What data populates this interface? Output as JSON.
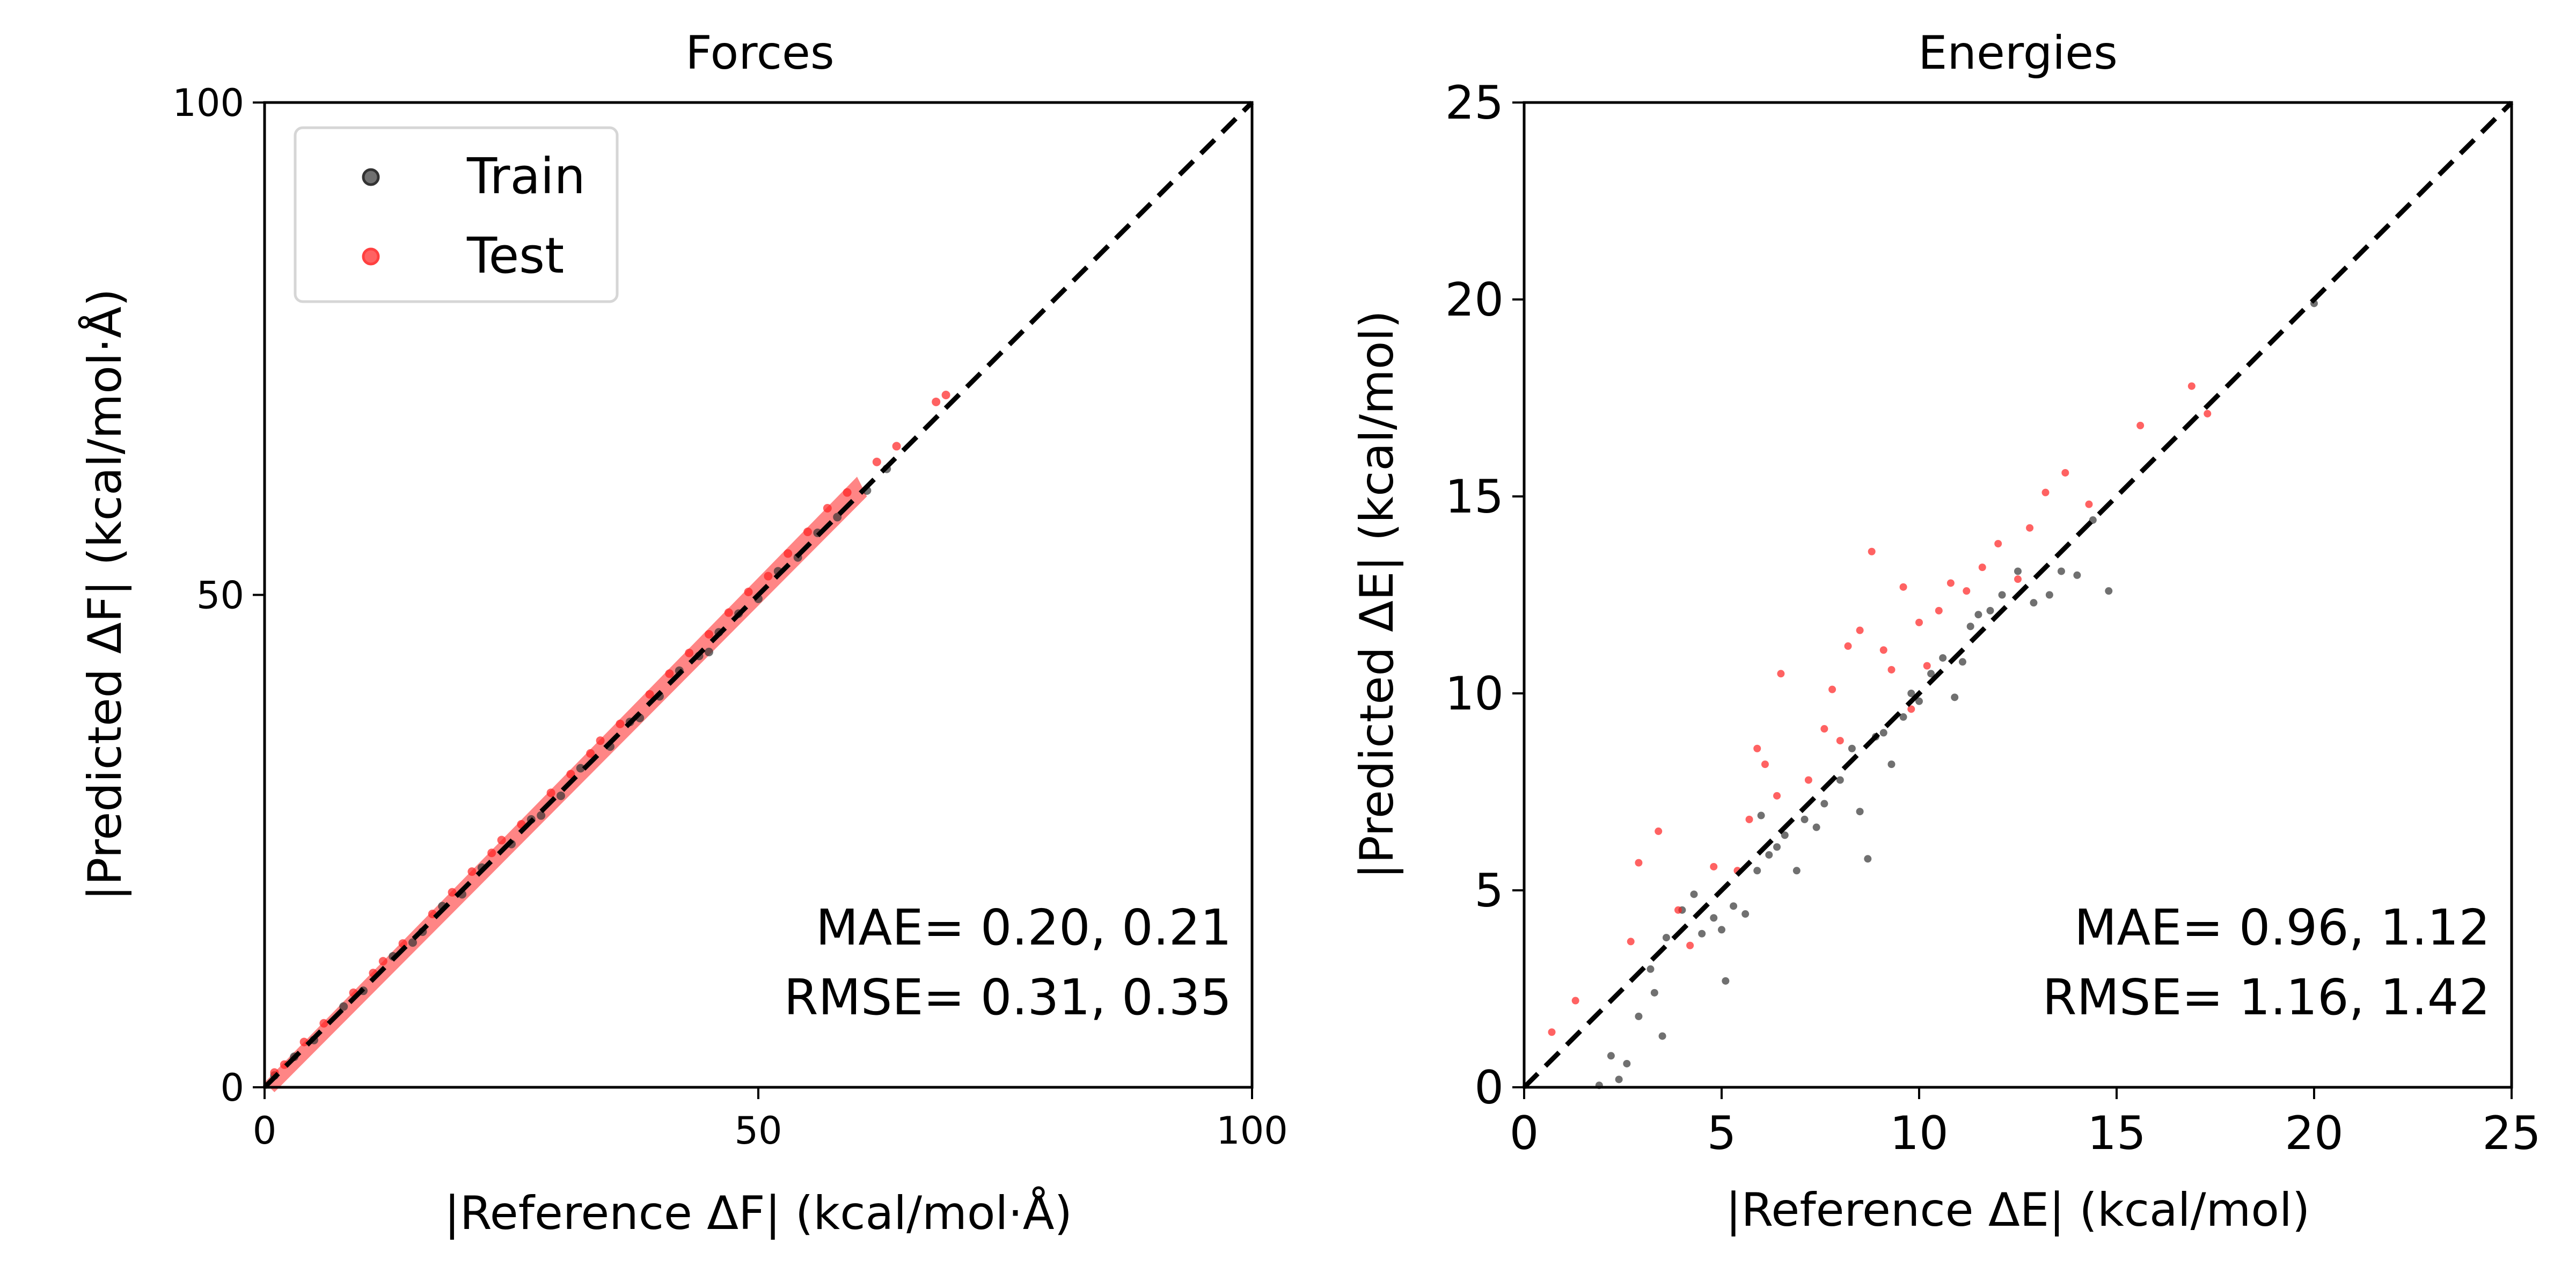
{
  "figure": {
    "left_panel": "Forces",
    "right_panel": "Energies"
  },
  "chart_data": [
    {
      "type": "scatter",
      "title": "Forces",
      "xlabel": "|Reference ΔF| (kcal/mol·Å)",
      "ylabel": "|Predicted ΔF| (kcal/mol·Å)",
      "xlim": [
        0,
        100
      ],
      "ylim": [
        0,
        100
      ],
      "xticks": [
        "0",
        "50",
        "100"
      ],
      "yticks": [
        "0",
        "50",
        "100"
      ],
      "grid": false,
      "legend": {
        "placement": "top-left",
        "entries": [
          {
            "label": "Train",
            "color": "#333333"
          },
          {
            "label": "Test",
            "color": "#ff2020"
          }
        ]
      },
      "reference_line": {
        "style": "dashed",
        "color": "#000000",
        "from": [
          0,
          0
        ],
        "to": [
          100,
          100
        ]
      },
      "annotations": [
        "MAE= 0.20, 0.21",
        "RMSE= 0.31, 0.35"
      ],
      "series": [
        {
          "name": "Train",
          "color": "#333333",
          "points": [
            [
              1,
              1.2
            ],
            [
              3,
              3.1
            ],
            [
              5,
              4.8
            ],
            [
              8,
              8.2
            ],
            [
              10,
              9.8
            ],
            [
              13,
              13.3
            ],
            [
              15,
              14.7
            ],
            [
              18,
              18.4
            ],
            [
              20,
              19.6
            ],
            [
              22,
              22.3
            ],
            [
              25,
              24.7
            ],
            [
              27,
              27.2
            ],
            [
              30,
              29.6
            ],
            [
              32,
              32.4
            ],
            [
              35,
              34.6
            ],
            [
              37,
              37.1
            ],
            [
              40,
              39.7
            ],
            [
              42,
              42.3
            ],
            [
              44,
              43.8
            ],
            [
              46,
              46.2
            ],
            [
              48,
              48.1
            ],
            [
              50,
              49.6
            ],
            [
              52,
              52.4
            ],
            [
              54,
              53.8
            ],
            [
              56,
              56.3
            ],
            [
              58,
              57.9
            ],
            [
              61,
              60.6
            ],
            [
              63,
              62.8
            ],
            [
              45,
              44.2
            ],
            [
              38,
              37.5
            ],
            [
              28,
              27.6
            ],
            [
              16,
              15.8
            ]
          ]
        },
        {
          "name": "Test",
          "color": "#ff2020",
          "points": [
            [
              1,
              1.5
            ],
            [
              2,
              2.3
            ],
            [
              4,
              4.6
            ],
            [
              6,
              6.5
            ],
            [
              9,
              9.6
            ],
            [
              11,
              11.6
            ],
            [
              14,
              14.6
            ],
            [
              17,
              17.6
            ],
            [
              19,
              19.8
            ],
            [
              21,
              21.9
            ],
            [
              23,
              23.8
            ],
            [
              26,
              26.7
            ],
            [
              29,
              29.9
            ],
            [
              31,
              31.8
            ],
            [
              33,
              33.9
            ],
            [
              36,
              36.9
            ],
            [
              39,
              39.9
            ],
            [
              41,
              42.0
            ],
            [
              43,
              44.1
            ],
            [
              45,
              46.0
            ],
            [
              47,
              48.2
            ],
            [
              49,
              50.3
            ],
            [
              51,
              51.9
            ],
            [
              53,
              54.2
            ],
            [
              55,
              56.4
            ],
            [
              57,
              58.8
            ],
            [
              59,
              60.4
            ],
            [
              62,
              63.5
            ],
            [
              64,
              65.1
            ],
            [
              68,
              69.6
            ],
            [
              69,
              70.3
            ],
            [
              24,
              25.1
            ],
            [
              34,
              35.2
            ],
            [
              12,
              12.8
            ]
          ]
        }
      ]
    },
    {
      "type": "scatter",
      "title": "Energies",
      "xlabel": "|Reference ΔE| (kcal/mol)",
      "ylabel": "|Predicted ΔE| (kcal/mol)",
      "xlim": [
        0,
        25
      ],
      "ylim": [
        0,
        25
      ],
      "xticks": [
        "0",
        "5",
        "10",
        "15",
        "20",
        "25"
      ],
      "yticks": [
        "0",
        "5",
        "10",
        "15",
        "20",
        "25"
      ],
      "grid": false,
      "reference_line": {
        "style": "dashed",
        "color": "#000000",
        "from": [
          0,
          0
        ],
        "to": [
          25,
          25
        ]
      },
      "annotations": [
        "MAE= 0.96, 1.12",
        "RMSE= 1.16, 1.42"
      ],
      "series": [
        {
          "name": "Train",
          "color": "#333333",
          "points": [
            [
              1.9,
              0.05
            ],
            [
              2.2,
              0.8
            ],
            [
              2.4,
              0.2
            ],
            [
              2.6,
              0.6
            ],
            [
              2.9,
              1.8
            ],
            [
              3.3,
              2.4
            ],
            [
              3.5,
              1.3
            ],
            [
              3.2,
              3.0
            ],
            [
              3.6,
              3.8
            ],
            [
              4.0,
              4.5
            ],
            [
              4.3,
              4.9
            ],
            [
              4.5,
              3.9
            ],
            [
              5.1,
              2.7
            ],
            [
              5.0,
              4.0
            ],
            [
              5.3,
              4.6
            ],
            [
              5.6,
              4.4
            ],
            [
              5.9,
              5.5
            ],
            [
              6.2,
              5.9
            ],
            [
              6.4,
              6.1
            ],
            [
              6.6,
              6.4
            ],
            [
              6.9,
              5.5
            ],
            [
              7.1,
              6.8
            ],
            [
              7.4,
              6.6
            ],
            [
              7.6,
              7.2
            ],
            [
              8.0,
              7.8
            ],
            [
              8.3,
              8.6
            ],
            [
              8.5,
              7.0
            ],
            [
              8.7,
              5.8
            ],
            [
              8.9,
              8.9
            ],
            [
              9.1,
              9.0
            ],
            [
              9.3,
              8.2
            ],
            [
              9.6,
              9.4
            ],
            [
              9.8,
              10.0
            ],
            [
              10.0,
              9.8
            ],
            [
              10.3,
              10.5
            ],
            [
              10.6,
              10.9
            ],
            [
              10.9,
              9.9
            ],
            [
              11.1,
              10.8
            ],
            [
              11.3,
              11.7
            ],
            [
              11.5,
              12.0
            ],
            [
              11.8,
              12.1
            ],
            [
              12.1,
              12.5
            ],
            [
              12.5,
              13.1
            ],
            [
              12.9,
              12.3
            ],
            [
              13.3,
              12.5
            ],
            [
              13.6,
              13.1
            ],
            [
              14.0,
              13.0
            ],
            [
              14.4,
              14.4
            ],
            [
              14.8,
              12.6
            ],
            [
              20.0,
              19.9
            ],
            [
              4.8,
              4.3
            ],
            [
              6.0,
              6.9
            ]
          ]
        },
        {
          "name": "Test",
          "color": "#ff2020",
          "points": [
            [
              0.7,
              1.4
            ],
            [
              1.3,
              2.2
            ],
            [
              2.9,
              5.7
            ],
            [
              3.4,
              6.5
            ],
            [
              2.7,
              3.7
            ],
            [
              3.9,
              4.5
            ],
            [
              4.2,
              3.6
            ],
            [
              4.8,
              5.6
            ],
            [
              5.4,
              5.5
            ],
            [
              5.7,
              6.8
            ],
            [
              5.9,
              8.6
            ],
            [
              6.1,
              8.2
            ],
            [
              6.4,
              7.4
            ],
            [
              6.5,
              10.5
            ],
            [
              7.2,
              7.8
            ],
            [
              7.6,
              9.1
            ],
            [
              7.8,
              10.1
            ],
            [
              8.0,
              8.8
            ],
            [
              8.2,
              11.2
            ],
            [
              8.5,
              11.6
            ],
            [
              8.8,
              13.6
            ],
            [
              9.1,
              11.1
            ],
            [
              9.3,
              10.6
            ],
            [
              9.6,
              12.7
            ],
            [
              10.0,
              11.8
            ],
            [
              10.2,
              10.7
            ],
            [
              10.5,
              12.1
            ],
            [
              10.8,
              12.8
            ],
            [
              11.2,
              12.6
            ],
            [
              11.6,
              13.2
            ],
            [
              12.0,
              13.8
            ],
            [
              12.5,
              12.9
            ],
            [
              12.8,
              14.2
            ],
            [
              13.2,
              15.1
            ],
            [
              13.7,
              15.6
            ],
            [
              14.3,
              14.8
            ],
            [
              15.6,
              16.8
            ],
            [
              16.9,
              17.8
            ],
            [
              17.3,
              17.1
            ],
            [
              9.8,
              9.6
            ]
          ]
        }
      ]
    }
  ]
}
